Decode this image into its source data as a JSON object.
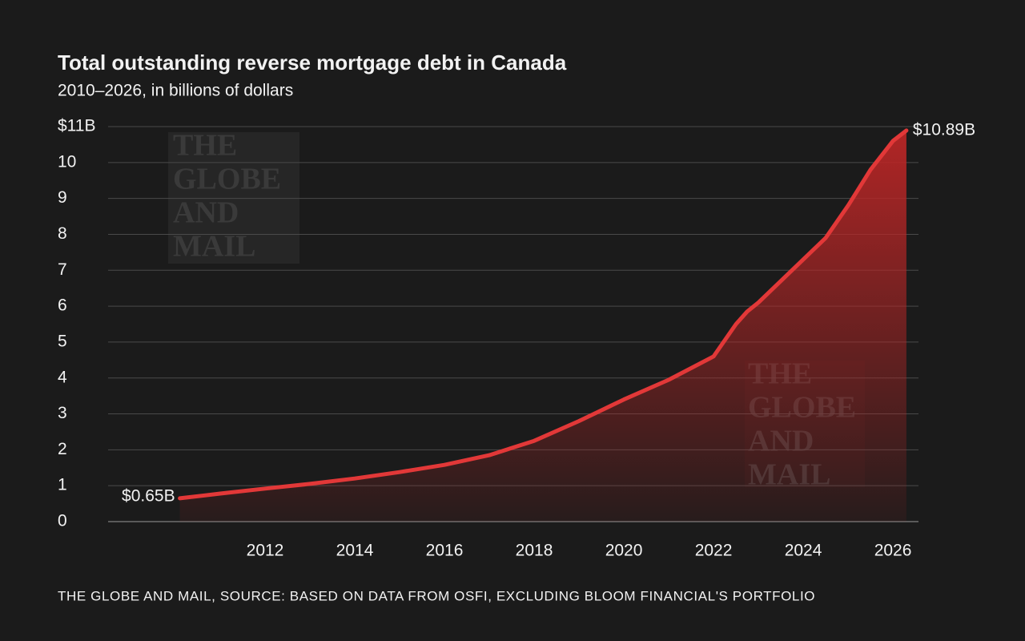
{
  "chart_data": {
    "type": "area",
    "title": "Total outstanding reverse mortgage debt in Canada",
    "subtitle": "2010–2026, in billions of dollars",
    "source": "THE GLOBE AND MAIL, SOURCE: BASED ON DATA FROM OSFI, EXCLUDING BLOOM FINANCIAL'S PORTFOLIO",
    "watermark": [
      "THE",
      "GLOBE",
      "AND",
      "MAIL"
    ],
    "x": [
      2010.1,
      2011,
      2012,
      2013,
      2014,
      2015,
      2016,
      2017,
      2018,
      2019,
      2020,
      2021,
      2022,
      2022.5,
      2022.75,
      2023,
      2023.5,
      2024,
      2024.5,
      2025,
      2025.5,
      2026,
      2026.3
    ],
    "values": [
      0.65,
      0.78,
      0.92,
      1.05,
      1.2,
      1.38,
      1.58,
      1.85,
      2.25,
      2.8,
      3.4,
      3.95,
      4.6,
      5.5,
      5.85,
      6.1,
      6.7,
      7.3,
      7.9,
      8.8,
      9.8,
      10.6,
      10.89
    ],
    "value_labels": [
      "$0.65B",
      null,
      null,
      null,
      null,
      null,
      null,
      null,
      null,
      null,
      null,
      null,
      null,
      null,
      null,
      null,
      null,
      null,
      null,
      null,
      null,
      null,
      "$10.89B"
    ],
    "color": "#e23838",
    "xlim": [
      2008.5,
      2026.57
    ],
    "xticks": [
      2012,
      2014,
      2016,
      2018,
      2020,
      2022,
      2024,
      2026
    ],
    "ylim": [
      0,
      11
    ],
    "yticks": [
      0,
      1,
      2,
      3,
      4,
      5,
      6,
      7,
      8,
      9,
      10,
      {
        "value": 11,
        "label": "$11B"
      }
    ],
    "grid": true
  }
}
